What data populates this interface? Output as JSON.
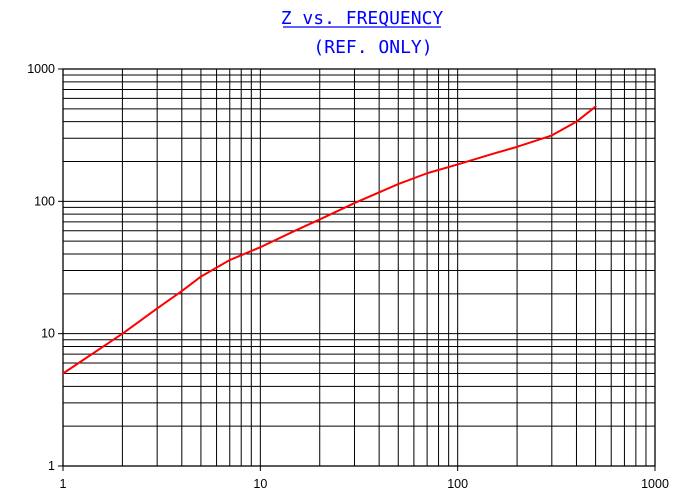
{
  "chart_data": {
    "type": "line",
    "title": "Z vs. FREQUENCY",
    "subtitle": "(REF. ONLY)",
    "xlabel": "",
    "ylabel": "",
    "x_scale": "log",
    "y_scale": "log",
    "xlim": [
      1,
      1000
    ],
    "ylim": [
      1,
      1000
    ],
    "x_ticks": [
      "1",
      "10",
      "100",
      "1000"
    ],
    "y_ticks": [
      "1",
      "10",
      "100",
      "1000"
    ],
    "grid": true,
    "legend": "none",
    "series": [
      {
        "color": "#ff0000",
        "x": [
          1,
          2,
          3,
          4,
          5,
          7,
          10,
          15,
          20,
          30,
          50,
          70,
          100,
          150,
          200,
          300,
          400,
          500
        ],
        "y": [
          5,
          10,
          15.5,
          21,
          27,
          36,
          45,
          60,
          73,
          97,
          135,
          163,
          190,
          228,
          258,
          315,
          400,
          520
        ]
      }
    ]
  },
  "colors": {
    "title": "#0000ff",
    "line": "#ff0000",
    "grid": "#000000"
  }
}
